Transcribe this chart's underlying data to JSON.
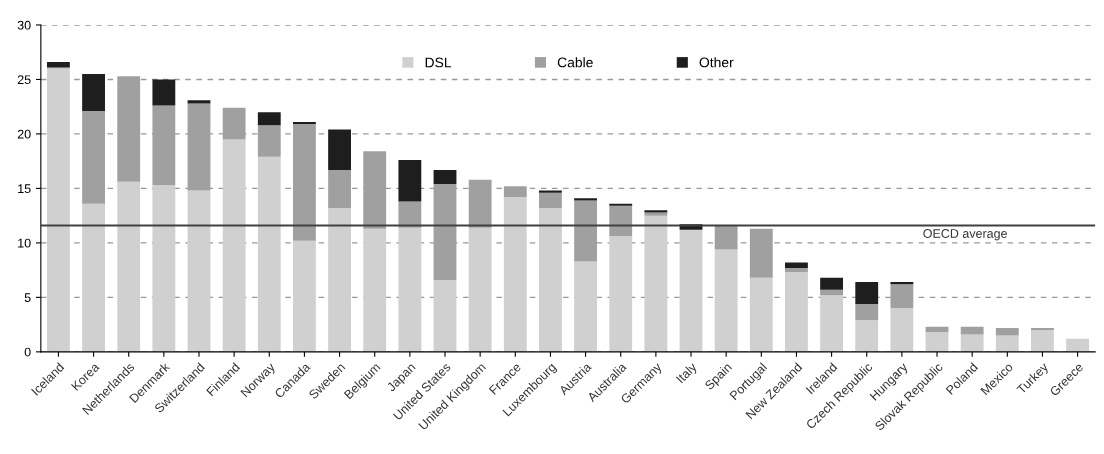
{
  "chart_data": {
    "type": "bar",
    "stacked": true,
    "categories": [
      "Iceland",
      "Korea",
      "Netherlands",
      "Denmark",
      "Switzerland",
      "Finland",
      "Norway",
      "Canada",
      "Sweden",
      "Belgium",
      "Japan",
      "United States",
      "United Kingdom",
      "France",
      "Luxembourg",
      "Austria",
      "Australia",
      "Germany",
      "Italy",
      "Spain",
      "Portugal",
      "New Zealand",
      "Ireland",
      "Czech Republic",
      "Hungary",
      "Slovak Republic",
      "Poland",
      "Mexico",
      "Turkey",
      "Greece"
    ],
    "series": [
      {
        "name": "DSL",
        "color": "#d0d0d0",
        "values": [
          26.0,
          13.6,
          15.6,
          15.3,
          14.8,
          19.5,
          17.9,
          10.2,
          13.2,
          11.3,
          11.4,
          6.6,
          11.4,
          14.2,
          13.2,
          8.3,
          10.6,
          12.5,
          11.2,
          9.4,
          6.8,
          7.3,
          5.2,
          2.9,
          4.0,
          1.8,
          1.6,
          1.5,
          2.0,
          1.2
        ]
      },
      {
        "name": "Cable",
        "color": "#a0a0a0",
        "values": [
          0.1,
          8.5,
          9.7,
          7.3,
          8.0,
          2.9,
          2.9,
          10.7,
          3.5,
          7.1,
          2.4,
          8.8,
          4.4,
          1.0,
          1.4,
          5.6,
          2.8,
          0.3,
          0,
          2.2,
          4.5,
          0.4,
          0.5,
          1.5,
          2.2,
          0.5,
          0.7,
          0.7,
          0.2,
          0
        ]
      },
      {
        "name": "Other",
        "color": "#1e1e1e",
        "values": [
          0.5,
          3.4,
          0,
          2.4,
          0.3,
          0,
          1.2,
          0.2,
          3.7,
          0,
          3.8,
          1.3,
          0,
          0,
          0.2,
          0.2,
          0.2,
          0.2,
          0.5,
          0,
          0,
          0.5,
          1.1,
          2.0,
          0.2,
          0,
          0,
          0,
          0,
          0
        ]
      }
    ],
    "ylim": [
      0,
      30
    ],
    "yticks": [
      0,
      5,
      10,
      15,
      20,
      25,
      30
    ],
    "grid": "y",
    "legend": "top",
    "ref_lines": [
      {
        "axis": "y",
        "value": 11.6,
        "label": "OECD average",
        "color": "#404040"
      }
    ]
  }
}
